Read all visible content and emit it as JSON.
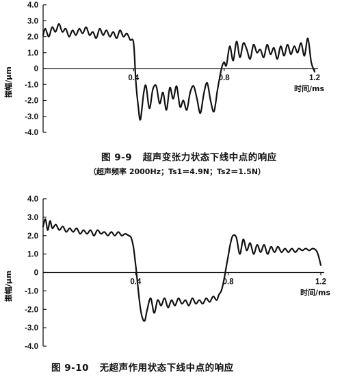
{
  "chart_data": [
    {
      "type": "line",
      "figure_number": "图 9-9",
      "title": "超声变张力状态下线中点的响应",
      "subtitle": "（超声频率 2000Hz；Ts1＝4.9N；Ts2＝1.5N）",
      "xlabel": "时间/ms",
      "ylabel": "振幅/μm",
      "xlim": [
        0,
        1.2
      ],
      "ylim": [
        -4.0,
        4.0
      ],
      "x_ticks": [
        "0.4",
        "0.8",
        "1.2"
      ],
      "y_ticks": [
        "4.0",
        "3.0",
        "2.0",
        "1.0",
        "0",
        "-1.0",
        "-2.0",
        "-3.0",
        "-4.0"
      ],
      "grid": false,
      "series": [
        {
          "x": [
            0,
            0.01,
            0.025,
            0.04,
            0.055,
            0.07,
            0.085,
            0.1,
            0.115,
            0.13,
            0.145,
            0.16,
            0.175,
            0.19,
            0.205,
            0.22,
            0.235,
            0.25,
            0.265,
            0.28,
            0.295,
            0.31,
            0.325,
            0.34,
            0.355,
            0.37,
            0.385,
            0.4,
            0.41,
            0.42,
            0.43,
            0.445,
            0.455,
            0.47,
            0.485,
            0.5,
            0.515,
            0.53,
            0.545,
            0.56,
            0.575,
            0.59,
            0.605,
            0.62,
            0.635,
            0.65,
            0.665,
            0.68,
            0.695,
            0.71,
            0.725,
            0.74,
            0.755,
            0.77,
            0.78,
            0.79,
            0.8,
            0.81,
            0.825,
            0.84,
            0.855,
            0.87,
            0.885,
            0.9,
            0.915,
            0.93,
            0.945,
            0.96,
            0.975,
            0.99,
            1.005,
            1.02,
            1.035,
            1.05,
            1.065,
            1.08,
            1.095,
            1.11,
            1.125,
            1.14,
            1.155,
            1.17,
            1.185,
            1.2
          ],
          "y": [
            2.1,
            2.5,
            2.0,
            2.6,
            2.3,
            2.8,
            2.3,
            2.5,
            2.0,
            2.4,
            2.1,
            2.5,
            2.2,
            2.6,
            2.1,
            2.3,
            1.9,
            2.5,
            2.1,
            2.4,
            2.0,
            2.3,
            1.9,
            2.4,
            2.0,
            2.2,
            1.8,
            1.6,
            -0.8,
            -2.3,
            -3.2,
            -1.5,
            -1.1,
            -2.5,
            -1.3,
            -1.1,
            -2.2,
            -1.5,
            -2.6,
            -1.2,
            -1.9,
            -1.1,
            -2.4,
            -2.0,
            -2.6,
            -1.5,
            -1.1,
            -1.9,
            -2.8,
            -1.6,
            -0.9,
            -2.0,
            -2.7,
            -1.4,
            -0.6,
            0.1,
            0.4,
            0.2,
            1.4,
            0.5,
            1.7,
            0.7,
            1.6,
            1.2,
            0.6,
            1.5,
            1.0,
            1.2,
            0.7,
            1.5,
            0.9,
            1.3,
            0.6,
            1.4,
            0.8,
            1.5,
            0.9,
            1.4,
            1.0,
            1.6,
            0.8,
            1.9,
            0.4,
            -0.2
          ]
        }
      ]
    },
    {
      "type": "line",
      "figure_number": "图 9-10",
      "title": "无超声作用状态下线中点的响应",
      "xlabel": "时间/ms",
      "ylabel": "振幅/μm",
      "xlim": [
        0,
        1.2
      ],
      "ylim": [
        -4.0,
        4.0
      ],
      "x_ticks": [
        "0.4",
        "0.8",
        "1.2"
      ],
      "y_ticks": [
        "4.0",
        "3.0",
        "2.0",
        "1.0",
        "0",
        "-1.0",
        "-2.0",
        "-3.0",
        "-4.0"
      ],
      "grid": false,
      "series": [
        {
          "x": [
            0,
            0.01,
            0.02,
            0.03,
            0.04,
            0.055,
            0.07,
            0.085,
            0.1,
            0.115,
            0.13,
            0.145,
            0.16,
            0.175,
            0.19,
            0.205,
            0.22,
            0.235,
            0.25,
            0.265,
            0.28,
            0.295,
            0.31,
            0.325,
            0.34,
            0.355,
            0.37,
            0.38,
            0.39,
            0.4,
            0.41,
            0.42,
            0.43,
            0.44,
            0.45,
            0.465,
            0.48,
            0.495,
            0.51,
            0.525,
            0.54,
            0.555,
            0.57,
            0.585,
            0.6,
            0.615,
            0.63,
            0.645,
            0.66,
            0.675,
            0.69,
            0.705,
            0.72,
            0.735,
            0.75,
            0.76,
            0.77,
            0.78,
            0.79,
            0.8,
            0.81,
            0.82,
            0.835,
            0.85,
            0.865,
            0.88,
            0.895,
            0.91,
            0.925,
            0.94,
            0.955,
            0.97,
            0.985,
            1.0,
            1.015,
            1.03,
            1.045,
            1.06,
            1.075,
            1.09,
            1.105,
            1.12,
            1.135,
            1.15,
            1.165,
            1.18,
            1.19,
            1.2
          ],
          "y": [
            2.5,
            2.9,
            2.3,
            2.8,
            2.4,
            2.6,
            2.3,
            2.5,
            2.2,
            2.4,
            2.2,
            2.4,
            2.1,
            2.3,
            2.1,
            2.3,
            2.0,
            2.3,
            2.1,
            2.2,
            2.0,
            2.2,
            2.0,
            2.2,
            2.0,
            2.1,
            2.0,
            1.9,
            1.4,
            0.4,
            -0.8,
            -1.9,
            -2.5,
            -2.6,
            -2.0,
            -1.4,
            -2.2,
            -1.5,
            -1.8,
            -1.4,
            -1.9,
            -1.5,
            -1.8,
            -1.4,
            -1.7,
            -1.5,
            -1.8,
            -1.4,
            -1.7,
            -1.5,
            -1.7,
            -1.4,
            -1.6,
            -1.3,
            -1.5,
            -1.2,
            -1.0,
            -0.5,
            0.2,
            0.9,
            1.6,
            2.0,
            1.9,
            1.0,
            1.8,
            1.2,
            1.6,
            1.0,
            1.5,
            1.1,
            1.5,
            1.0,
            1.4,
            1.1,
            1.4,
            1.1,
            1.3,
            1.1,
            1.3,
            1.1,
            1.3,
            1.2,
            1.3,
            1.2,
            1.3,
            1.2,
            0.9,
            0.4
          ]
        }
      ]
    }
  ]
}
